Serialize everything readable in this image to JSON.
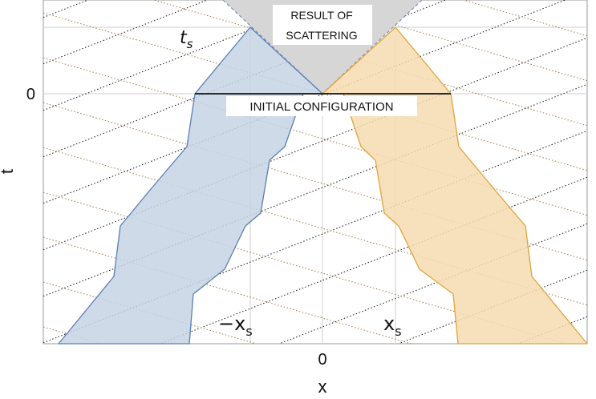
{
  "axes": {
    "x_label": "x",
    "t_label": "t",
    "x_tick": "0",
    "t_tick": "0"
  },
  "labels": {
    "result": [
      "RESULT OF",
      "SCATTERING"
    ],
    "initial": "INITIAL CONFIGURATION",
    "ts_base": "t",
    "ts_sub": "s",
    "neg_xs_prefix": "−x",
    "neg_xs_sub": "s",
    "xs_base": "x",
    "xs_sub": "s"
  },
  "colors": {
    "left_fill": "#c5d3e4",
    "left_stroke": "#5b7fb5",
    "right_fill": "#f6dcb2",
    "right_stroke": "#dfa33a",
    "scatter_fill": "#d6d6d6",
    "scatter_stroke": "#7f8fbf",
    "black_dotted": "#111111",
    "brown_dotted": "#9a7a44",
    "grid": "#cfcfcf"
  }
}
